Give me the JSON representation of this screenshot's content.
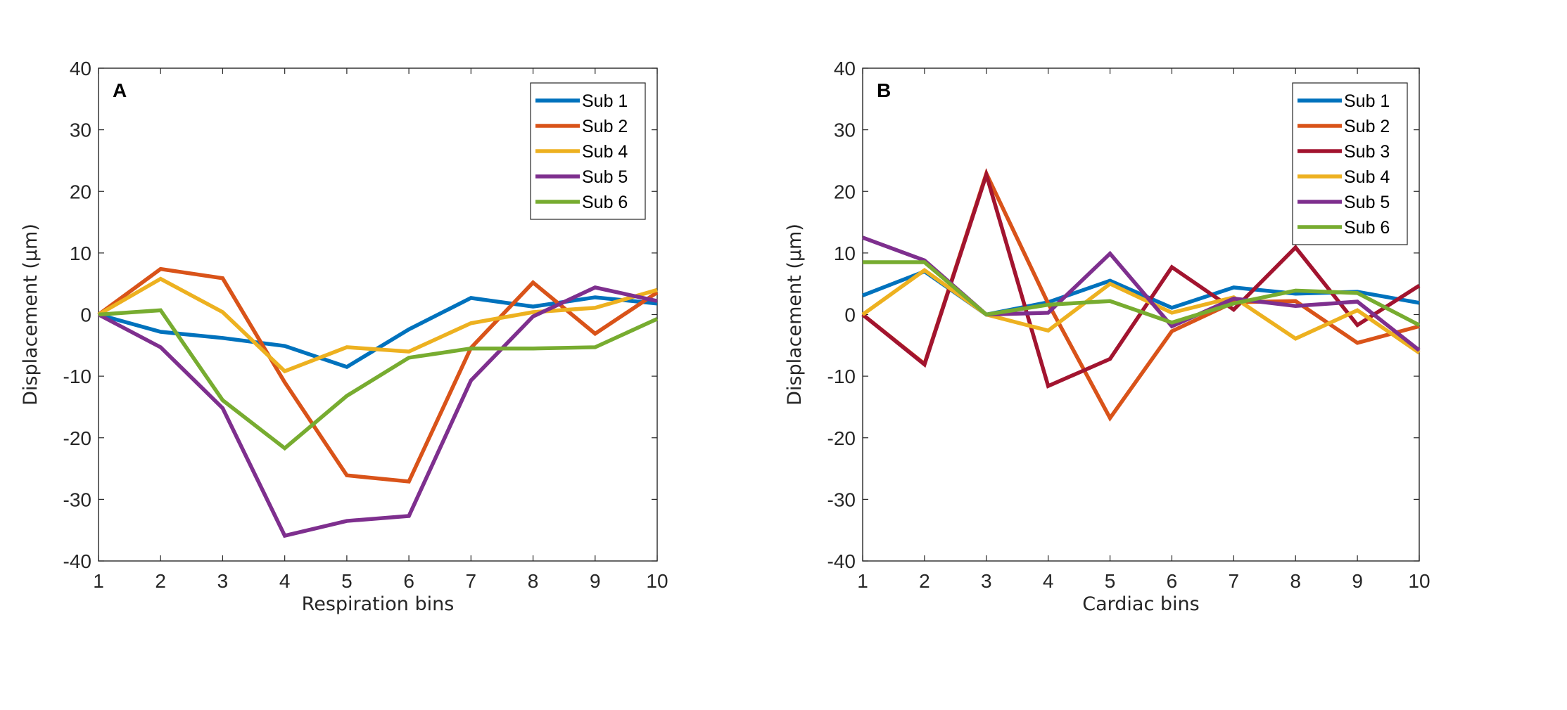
{
  "colors": {
    "Sub 1": "#0072BD",
    "Sub 2": "#D95319",
    "Sub 3": "#A2142F",
    "Sub 4": "#EDB120",
    "Sub 5": "#7E2F8E",
    "Sub 6": "#77AC30"
  },
  "chart_data": [
    {
      "type": "line",
      "panel_label": "A",
      "xlabel": "Respiration bins",
      "ylabel": "Displacement (µm)",
      "xlim": [
        1,
        10
      ],
      "ylim": [
        -40,
        40
      ],
      "xticks": [
        1,
        2,
        3,
        4,
        5,
        6,
        7,
        8,
        9,
        10
      ],
      "yticks": [
        -40,
        -30,
        -20,
        -10,
        0,
        10,
        20,
        30,
        40
      ],
      "legend_position": "top-right",
      "x": [
        1,
        2,
        3,
        4,
        5,
        6,
        7,
        8,
        9,
        10
      ],
      "series": [
        {
          "name": "Sub 1",
          "values": [
            0,
            -2.8,
            -3.8,
            -5.1,
            -8.5,
            -2.4,
            2.7,
            1.3,
            2.8,
            1.8
          ]
        },
        {
          "name": "Sub 2",
          "values": [
            0,
            7.4,
            5.9,
            -11,
            -26.1,
            -27.1,
            -5.4,
            5.2,
            -3.1,
            3.6
          ]
        },
        {
          "name": "Sub 4",
          "values": [
            0,
            5.8,
            0.4,
            -9.2,
            -5.3,
            -6,
            -1.4,
            0.4,
            1.1,
            4
          ]
        },
        {
          "name": "Sub 5",
          "values": [
            0,
            -5.3,
            -15.2,
            -35.9,
            -33.5,
            -32.7,
            -10.7,
            -0.3,
            4.4,
            2.2
          ]
        },
        {
          "name": "Sub 6",
          "values": [
            0,
            0.7,
            -13.9,
            -21.7,
            -13.2,
            -7,
            -5.5,
            -5.5,
            -5.3,
            -0.7
          ]
        }
      ]
    },
    {
      "type": "line",
      "panel_label": "B",
      "xlabel": "Cardiac bins",
      "ylabel": "Displacement (µm)",
      "xlim": [
        1,
        10
      ],
      "ylim": [
        -40,
        40
      ],
      "xticks": [
        1,
        2,
        3,
        4,
        5,
        6,
        7,
        8,
        9,
        10
      ],
      "yticks": [
        -40,
        -30,
        -20,
        -10,
        0,
        10,
        20,
        30,
        40
      ],
      "legend_position": "top-right",
      "x": [
        1,
        2,
        3,
        4,
        5,
        6,
        7,
        8,
        9,
        10
      ],
      "series": [
        {
          "name": "Sub 1",
          "values": [
            3.1,
            7,
            0,
            2,
            5.5,
            1.1,
            4.4,
            3.4,
            3.7,
            1.9
          ]
        },
        {
          "name": "Sub 2",
          "values": [
            0,
            -8,
            22.9,
            1.8,
            -16.8,
            -2.7,
            2,
            2.2,
            -4.6,
            -1.9
          ]
        },
        {
          "name": "Sub 3",
          "values": [
            0,
            -8.1,
            22.7,
            -11.6,
            -7.2,
            7.7,
            0.8,
            10.9,
            -1.7,
            4.7
          ]
        },
        {
          "name": "Sub 4",
          "values": [
            0,
            7.2,
            0,
            -2.6,
            5,
            0.3,
            2.8,
            -3.9,
            0.7,
            -6.2
          ]
        },
        {
          "name": "Sub 5",
          "values": [
            12.5,
            8.8,
            0,
            0.3,
            9.9,
            -1.9,
            2.6,
            1.4,
            2.1,
            -5.8
          ]
        },
        {
          "name": "Sub 6",
          "values": [
            8.5,
            8.5,
            0,
            1.6,
            2.2,
            -1.3,
            1.8,
            3.9,
            3.5,
            -1.7
          ]
        }
      ]
    }
  ]
}
